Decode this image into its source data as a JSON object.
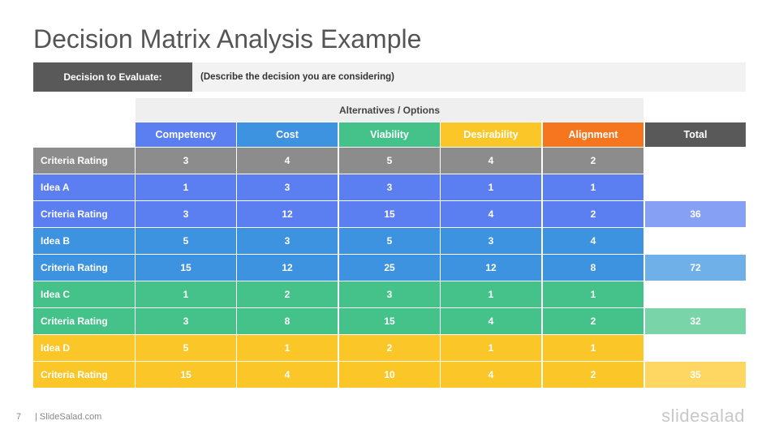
{
  "title": "Decision Matrix Analysis Example",
  "decision": {
    "label": "Decision to Evaluate:",
    "value": "(Describe the decision you are considering)"
  },
  "alternatives_header": "Alternatives / Options",
  "columns": [
    {
      "label": "Competency",
      "color": "#5b7ff0"
    },
    {
      "label": "Cost",
      "color": "#3d93df"
    },
    {
      "label": "Viability",
      "color": "#44c28a"
    },
    {
      "label": "Desirability",
      "color": "#fbc728"
    },
    {
      "label": "Alignment",
      "color": "#f5761f"
    },
    {
      "label": "Total",
      "color": "#595959"
    }
  ],
  "rows": [
    {
      "label": "Criteria Rating",
      "values": [
        "3",
        "4",
        "5",
        "4",
        "2"
      ],
      "total": "",
      "color": "#8c8c8c",
      "total_color": ""
    },
    {
      "label": "Idea A",
      "values": [
        "1",
        "3",
        "3",
        "1",
        "1"
      ],
      "total": "",
      "color": "#5b7ff0",
      "total_color": ""
    },
    {
      "label": "Criteria Rating",
      "values": [
        "3",
        "12",
        "15",
        "4",
        "2"
      ],
      "total": "36",
      "color": "#5b7ff0",
      "total_color": "#86a0f4"
    },
    {
      "label": "Idea B",
      "values": [
        "5",
        "3",
        "5",
        "3",
        "4"
      ],
      "total": "",
      "color": "#3d93df",
      "total_color": ""
    },
    {
      "label": "Criteria Rating",
      "values": [
        "15",
        "12",
        "25",
        "12",
        "8"
      ],
      "total": "72",
      "color": "#3d93df",
      "total_color": "#6fb0e8"
    },
    {
      "label": "Idea C",
      "values": [
        "1",
        "2",
        "3",
        "1",
        "1"
      ],
      "total": "",
      "color": "#44c28a",
      "total_color": ""
    },
    {
      "label": "Criteria Rating",
      "values": [
        "3",
        "8",
        "15",
        "4",
        "2"
      ],
      "total": "32",
      "color": "#44c28a",
      "total_color": "#7ad4aa"
    },
    {
      "label": "Idea D",
      "values": [
        "5",
        "1",
        "2",
        "1",
        "1"
      ],
      "total": "",
      "color": "#fbc728",
      "total_color": ""
    },
    {
      "label": "Criteria Rating",
      "values": [
        "15",
        "4",
        "10",
        "4",
        "2"
      ],
      "total": "35",
      "color": "#fbc728",
      "total_color": "#fdd762"
    }
  ],
  "footer": {
    "page_number": "7",
    "site": "| SlideSalad.com",
    "logo": "slidesalad"
  }
}
